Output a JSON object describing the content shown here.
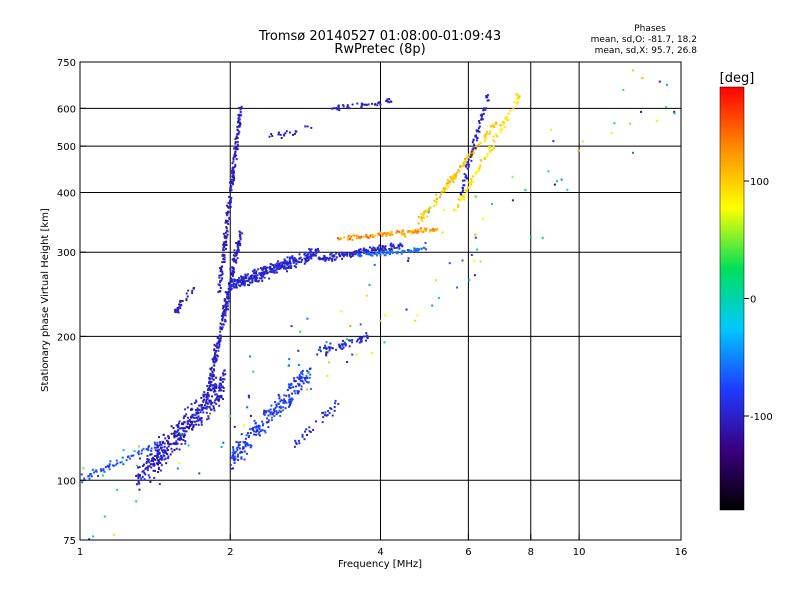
{
  "chart_data": {
    "type": "scatter",
    "title": "Tromsø 20140527 01:08:00-01:09:43",
    "subtitle": "RwPretec (8p)",
    "xlabel": "Frequency [MHz]",
    "ylabel": "Stationary phase Virtual Height [km]",
    "x_scale": "log",
    "y_scale": "log",
    "xlim": [
      1,
      16
    ],
    "ylim": [
      75,
      750
    ],
    "x_ticks": [
      1,
      2,
      4,
      6,
      8,
      10,
      16
    ],
    "x_tick_labels": [
      "1",
      "2",
      "4",
      "6",
      "8",
      "10",
      "16"
    ],
    "y_ticks": [
      75,
      100,
      200,
      300,
      400,
      500,
      600,
      750
    ],
    "y_tick_labels": [
      "75",
      "100",
      "200",
      "300",
      "400",
      "500",
      "600",
      "750"
    ],
    "grid": true,
    "phase_summary": {
      "title": "Phases",
      "line_o": "mean, sd,O: -81.7, 18.2",
      "line_x": "mean, sd,X:  95.7, 26.8"
    },
    "colorbar": {
      "label": "[deg]",
      "range": [
        -180,
        180
      ],
      "ticks": [
        100,
        0,
        -100
      ],
      "tick_labels": [
        "100",
        "0",
        "-100"
      ],
      "colormap": [
        "#000000",
        "#3a0080",
        "#1e3cff",
        "#00c8ff",
        "#00e05a",
        "#ffff00",
        "#ff8c00",
        "#ff0000"
      ]
    },
    "series": [
      {
        "traces": [
          {
            "f0": 1.0,
            "f1": 1.45,
            "h0": 100,
            "h1": 120,
            "n": 60,
            "ph": [
              -85,
              -60
            ],
            "spread": 0.03
          },
          {
            "f0": 1.3,
            "f1": 1.95,
            "h0": 100,
            "h1": 160,
            "n": 420,
            "ph": [
              -115,
              -85
            ],
            "spread": 0.09
          },
          {
            "f0": 1.55,
            "f1": 1.7,
            "h0": 225,
            "h1": 255,
            "n": 30,
            "ph": [
              -110,
              -95
            ],
            "spread": 0.03
          },
          {
            "f0": 1.8,
            "f1": 2.1,
            "h0": 150,
            "h1": 330,
            "n": 260,
            "ph": [
              -115,
              -85
            ],
            "spread": 0.05
          },
          {
            "f0": 1.9,
            "f1": 2.1,
            "h0": 250,
            "h1": 600,
            "n": 200,
            "ph": [
              -115,
              -85
            ],
            "spread": 0.04
          },
          {
            "f0": 2.0,
            "f1": 2.9,
            "h0": 110,
            "h1": 170,
            "n": 240,
            "ph": [
              -100,
              -60
            ],
            "spread": 0.07
          },
          {
            "f0": 2.0,
            "f1": 3.0,
            "h0": 255,
            "h1": 300,
            "n": 320,
            "ph": [
              -110,
              -80
            ],
            "spread": 0.035
          },
          {
            "f0": 3.0,
            "f1": 3.8,
            "h0": 185,
            "h1": 200,
            "n": 60,
            "ph": [
              -105,
              -80
            ],
            "spread": 0.03
          },
          {
            "f0": 3.0,
            "f1": 4.4,
            "h0": 290,
            "h1": 310,
            "n": 150,
            "ph": [
              -110,
              -85
            ],
            "spread": 0.02
          },
          {
            "f0": 3.3,
            "f1": 5.2,
            "h0": 320,
            "h1": 335,
            "n": 110,
            "ph": [
              100,
              150
            ],
            "spread": 0.015
          },
          {
            "f0": 3.6,
            "f1": 5.0,
            "h0": 295,
            "h1": 305,
            "n": 70,
            "ph": [
              -70,
              -50
            ],
            "spread": 0.012
          },
          {
            "f0": 4.5,
            "f1": 6.8,
            "h0": 320,
            "h1": 560,
            "n": 130,
            "ph": [
              80,
              120
            ],
            "spread": 0.02
          },
          {
            "f0": 5.6,
            "f1": 7.6,
            "h0": 360,
            "h1": 640,
            "n": 90,
            "ph": [
              75,
              110
            ],
            "spread": 0.03
          },
          {
            "f0": 5.8,
            "f1": 6.6,
            "h0": 400,
            "h1": 650,
            "n": 70,
            "ph": [
              -110,
              -85
            ],
            "spread": 0.03
          },
          {
            "f0": 3.2,
            "f1": 4.2,
            "h0": 600,
            "h1": 620,
            "n": 40,
            "ph": [
              -110,
              -90
            ],
            "spread": 0.015
          },
          {
            "f0": 2.4,
            "f1": 2.9,
            "h0": 520,
            "h1": 545,
            "n": 20,
            "ph": [
              -105,
              -95
            ],
            "spread": 0.02
          },
          {
            "f0": 2.7,
            "f1": 3.3,
            "h0": 120,
            "h1": 145,
            "n": 35,
            "ph": [
              -100,
              -80
            ],
            "spread": 0.04
          },
          {
            "f0": 1.0,
            "f1": 16.0,
            "h0": 80,
            "h1": 700,
            "n": 120,
            "ph": [
              -120,
              120
            ],
            "spread": 0.3
          }
        ]
      }
    ]
  }
}
